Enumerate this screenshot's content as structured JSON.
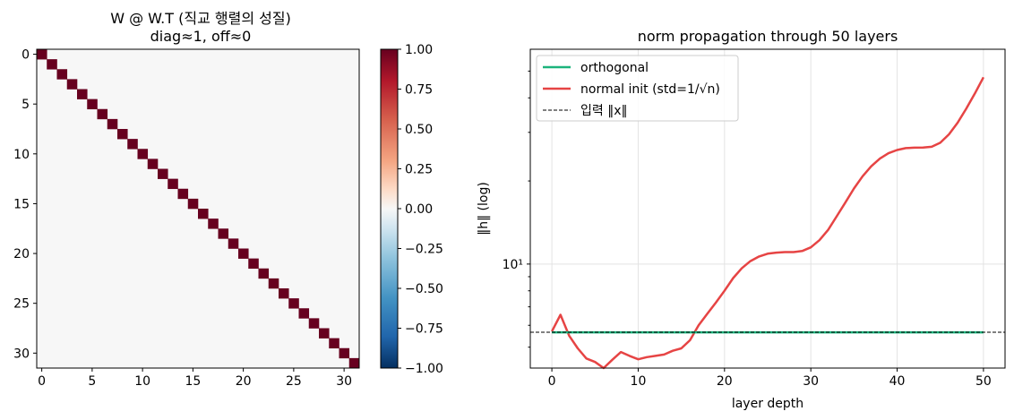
{
  "chart_data": [
    {
      "type": "heatmap",
      "title_line1": "W @ W.T (직교 행렬의 성질)",
      "title_line2": "diag≈1, off≈0",
      "size": 32,
      "matrix_rule": "identity",
      "diag_value": 1.0,
      "off_value": 0.0,
      "xticks": [
        "0",
        "5",
        "10",
        "15",
        "20",
        "25",
        "30"
      ],
      "yticks": [
        "0",
        "5",
        "10",
        "15",
        "20",
        "25",
        "30"
      ],
      "colorbar": {
        "colormap": "RdBu_r",
        "vmin": -1.0,
        "vmax": 1.0,
        "ticks": [
          "1.00",
          "0.75",
          "0.50",
          "0.25",
          "0.00",
          "−0.25",
          "−0.50",
          "−0.75",
          "−1.00"
        ]
      }
    },
    {
      "type": "line",
      "title": "norm propagation through 50 layers",
      "xlabel": "layer depth",
      "ylabel": "‖h‖ (log)",
      "yscale": "log",
      "xlim": [
        -2.5,
        52.5
      ],
      "ylim": [
        4.2,
        60.0
      ],
      "xticks": [
        "0",
        "10",
        "20",
        "30",
        "40",
        "50"
      ],
      "ytick_label": "10¹",
      "grid": true,
      "legend": "top-left",
      "series": [
        {
          "name": "orthogonal",
          "color": "#1cb37c",
          "x": [
            0,
            50
          ],
          "y": [
            5.66,
            5.66
          ]
        },
        {
          "name": "normal init (std=1/√n)",
          "color": "#e64444",
          "x": [
            0,
            1,
            2,
            3,
            4,
            5,
            6,
            7,
            8,
            9,
            10,
            11,
            12,
            13,
            14,
            15,
            16,
            17,
            18,
            19,
            20,
            21,
            22,
            23,
            24,
            25,
            26,
            27,
            28,
            29,
            30,
            31,
            32,
            33,
            34,
            35,
            36,
            37,
            38,
            39,
            40,
            41,
            42,
            43,
            44,
            45,
            46,
            47,
            48,
            49,
            50
          ],
          "y": [
            5.7,
            6.55,
            5.5,
            4.95,
            4.55,
            4.42,
            4.2,
            4.5,
            4.8,
            4.65,
            4.52,
            4.6,
            4.65,
            4.7,
            4.85,
            4.95,
            5.3,
            6.0,
            6.6,
            7.25,
            8.0,
            8.9,
            9.65,
            10.25,
            10.65,
            10.9,
            11.0,
            11.05,
            11.05,
            11.15,
            11.5,
            12.2,
            13.3,
            14.9,
            16.7,
            18.8,
            20.8,
            22.6,
            24.1,
            25.2,
            25.9,
            26.3,
            26.4,
            26.45,
            26.6,
            27.5,
            29.5,
            32.5,
            36.5,
            41.5,
            47.5
          ]
        },
        {
          "name": "입력 ‖x‖",
          "color": "#000000",
          "dashed": true,
          "y": 5.66
        }
      ]
    }
  ]
}
